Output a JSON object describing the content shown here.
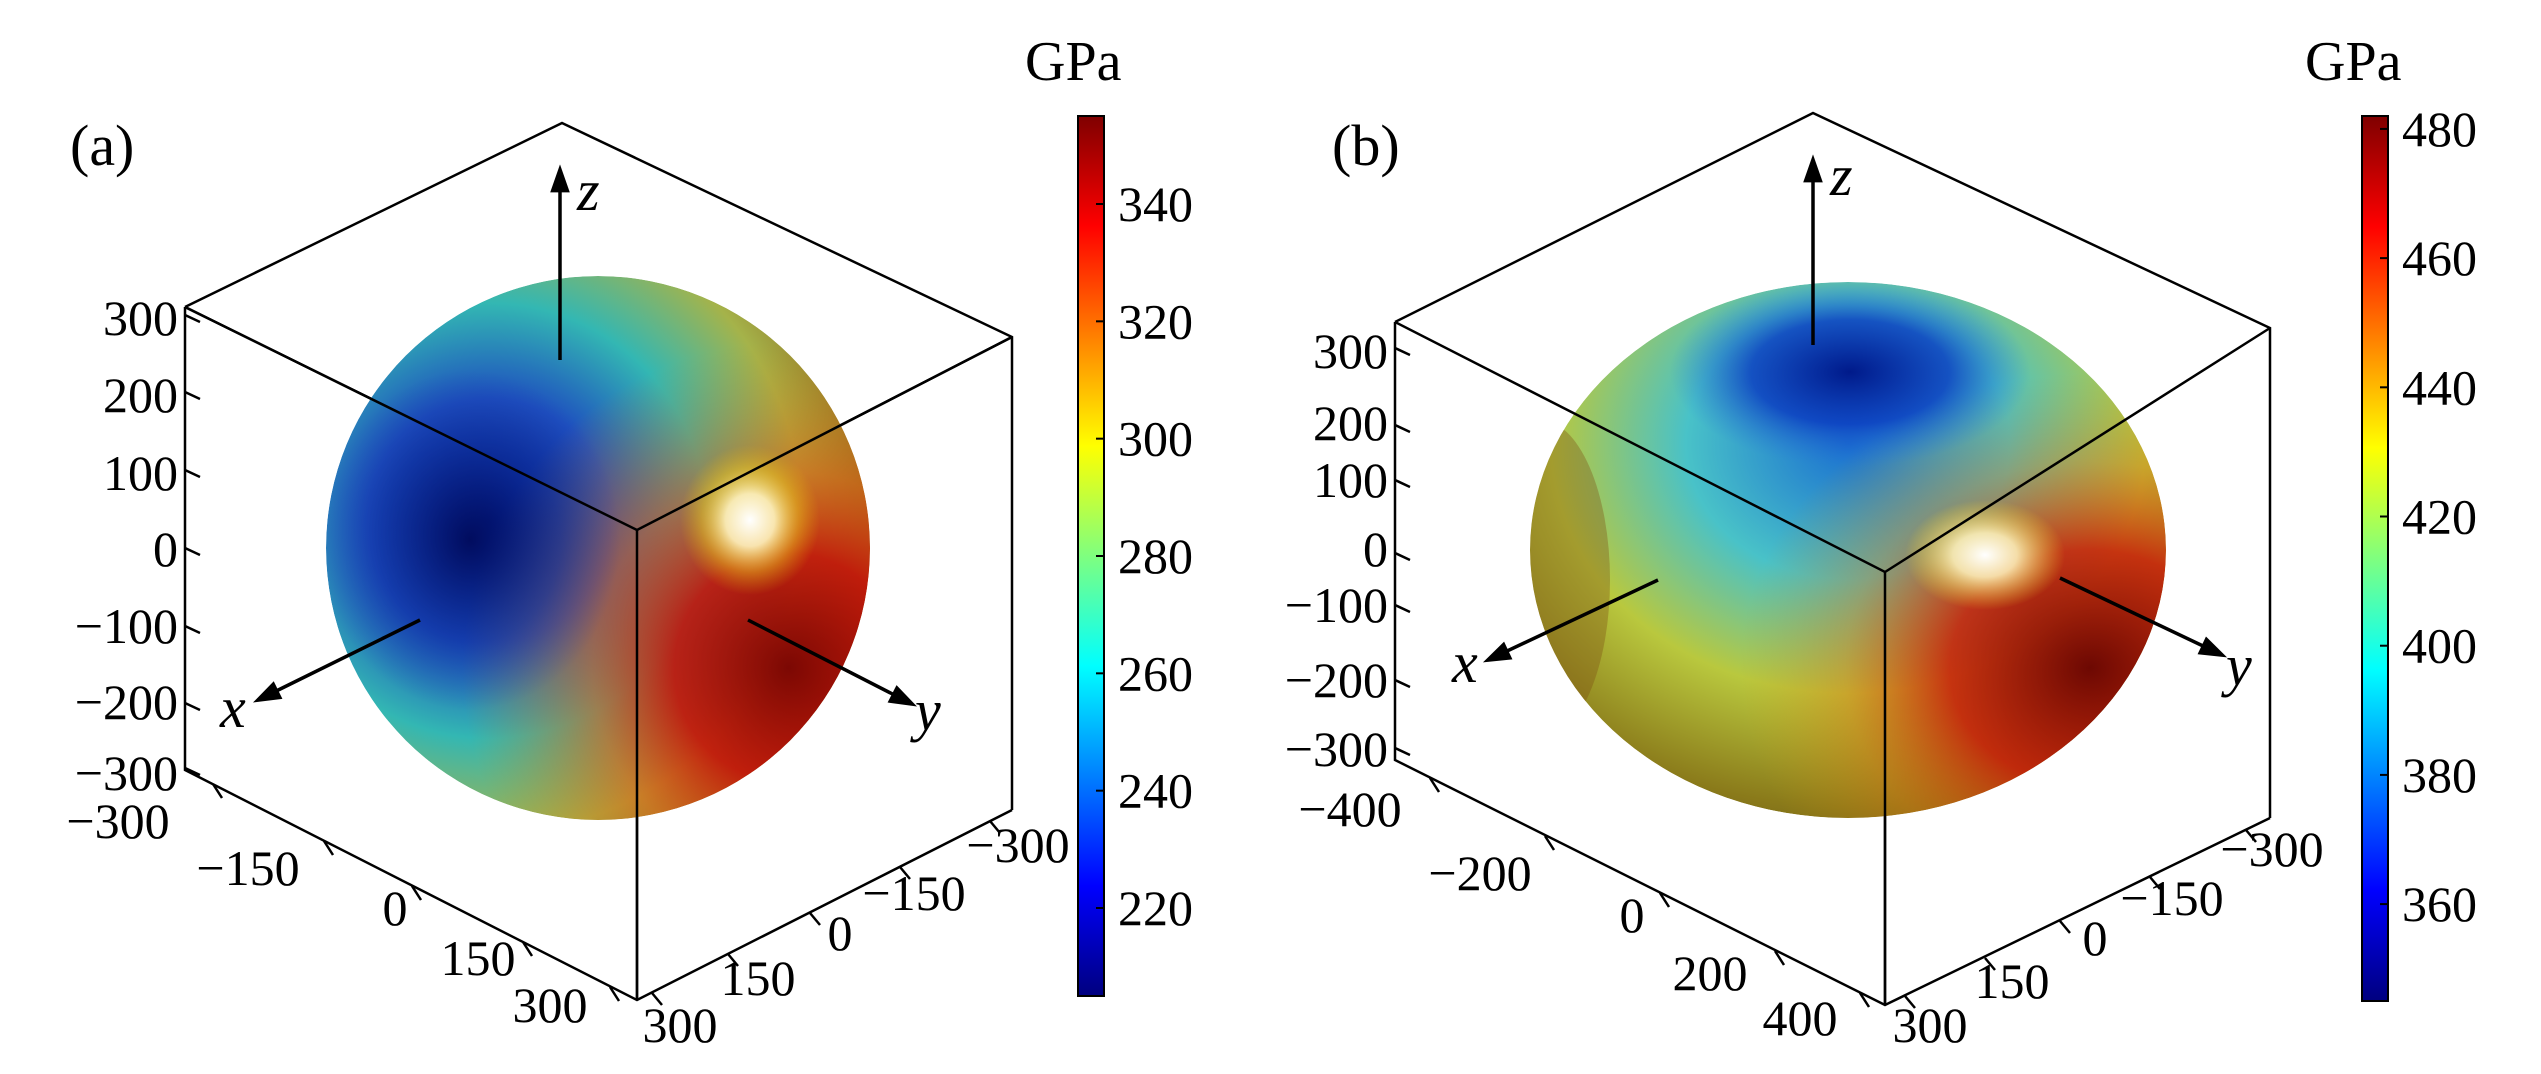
{
  "chart_data": [
    {
      "type": "3d-surface",
      "panel_label": "(a)",
      "colorbar": {
        "unit": "GPa",
        "range": [
          205,
          355
        ],
        "ticks": [
          "220",
          "240",
          "260",
          "280",
          "300",
          "320",
          "340"
        ]
      },
      "axis_labels": {
        "x": "x",
        "y": "y",
        "z": "z"
      },
      "z_ticks": [
        "300",
        "200",
        "100",
        "0",
        "−100",
        "−200",
        "−300"
      ],
      "x_ticks": [
        "−300",
        "−150",
        "0",
        "150",
        "300"
      ],
      "y_ticks": [
        "−300",
        "−150",
        "0",
        "150",
        "300"
      ],
      "axis_ranges": {
        "x": [
          -300,
          300
        ],
        "y": [
          -300,
          300
        ],
        "z": [
          -300,
          300
        ]
      },
      "surface_value_range": [
        205,
        355
      ]
    },
    {
      "type": "3d-surface",
      "panel_label": "(b)",
      "colorbar": {
        "unit": "GPa",
        "range": [
          345,
          482
        ],
        "ticks": [
          "360",
          "380",
          "400",
          "420",
          "440",
          "460",
          "480"
        ]
      },
      "axis_labels": {
        "x": "x",
        "y": "y",
        "z": "z"
      },
      "z_ticks": [
        "300",
        "200",
        "100",
        "0",
        "−100",
        "−200",
        "−300"
      ],
      "x_ticks": [
        "−400",
        "−200",
        "0",
        "200",
        "400"
      ],
      "y_ticks": [
        "−300",
        "−150",
        "0",
        "150",
        "300"
      ],
      "axis_ranges": {
        "x": [
          -400,
          400
        ],
        "y": [
          -300,
          300
        ],
        "z": [
          -300,
          300
        ]
      },
      "surface_value_range": [
        345,
        482
      ]
    }
  ],
  "colors": {
    "jet": [
      "#00007f",
      "#0000ff",
      "#007fff",
      "#00ffff",
      "#7fff7f",
      "#ffff00",
      "#ff7f00",
      "#ff0000",
      "#7f0000"
    ]
  }
}
